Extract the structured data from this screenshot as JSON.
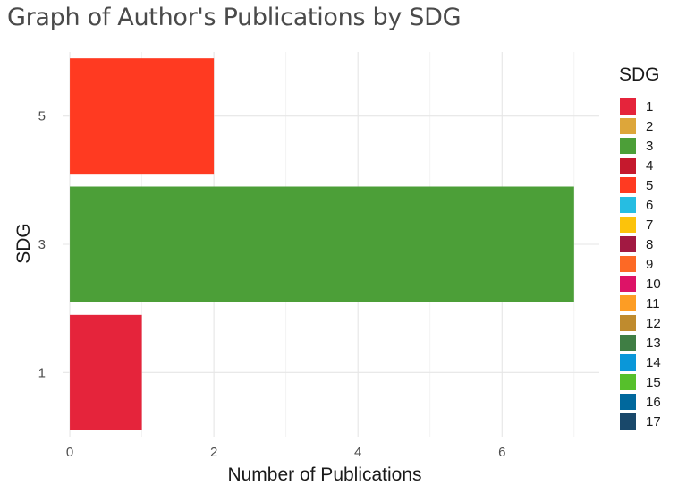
{
  "title": "Graph of Author's Publications by SDG",
  "chart_data": {
    "type": "bar",
    "orientation": "horizontal",
    "title": "Graph of Author's Publications by SDG",
    "xlabel": "Number of Publications",
    "ylabel": "SDG",
    "categories": [
      "1",
      "3",
      "5"
    ],
    "values": [
      1,
      7,
      2
    ],
    "bar_colors": [
      "#E5243B",
      "#4C9F38",
      "#FF3A21"
    ],
    "xlim": [
      -0.1,
      7.35
    ],
    "xticks": [
      0,
      2,
      4,
      6
    ],
    "grid": true,
    "legend": {
      "title": "SDG",
      "placement": "right",
      "entries": [
        {
          "label": "1",
          "color": "#E5243B"
        },
        {
          "label": "2",
          "color": "#DDA63A"
        },
        {
          "label": "3",
          "color": "#4C9F38"
        },
        {
          "label": "4",
          "color": "#C5192D"
        },
        {
          "label": "5",
          "color": "#FF3A21"
        },
        {
          "label": "6",
          "color": "#26BDE2"
        },
        {
          "label": "7",
          "color": "#FCC30B"
        },
        {
          "label": "8",
          "color": "#A21942"
        },
        {
          "label": "9",
          "color": "#FD6925"
        },
        {
          "label": "10",
          "color": "#DD1367"
        },
        {
          "label": "11",
          "color": "#FD9D24"
        },
        {
          "label": "12",
          "color": "#BF8B2E"
        },
        {
          "label": "13",
          "color": "#3F7E44"
        },
        {
          "label": "14",
          "color": "#0A97D9"
        },
        {
          "label": "15",
          "color": "#56C02B"
        },
        {
          "label": "16",
          "color": "#00689D"
        },
        {
          "label": "17",
          "color": "#19486A"
        }
      ]
    }
  }
}
